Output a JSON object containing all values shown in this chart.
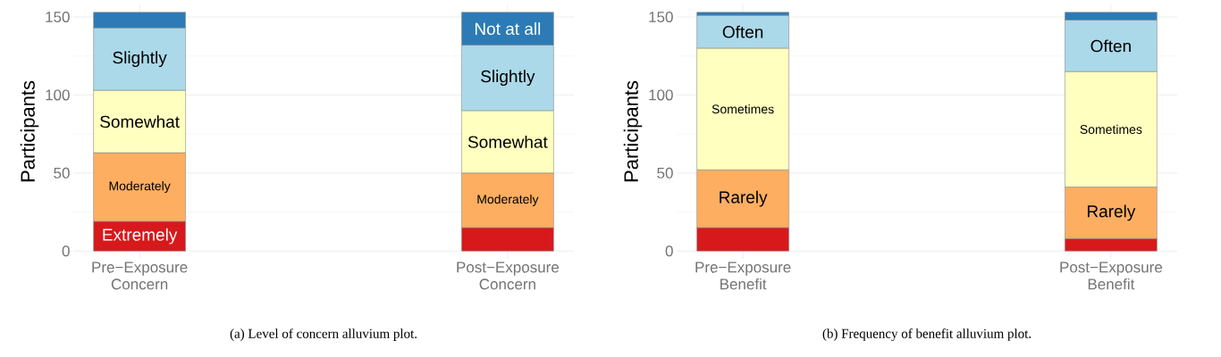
{
  "chart_data": [
    {
      "type": "bar",
      "stacked": true,
      "ylabel": "Participants",
      "categories": [
        "Pre−Exposure Concern",
        "Post−Exposure Concern"
      ],
      "series": [
        {
          "name": "Extremely",
          "color": "#d7191c",
          "values": [
            19,
            null
          ]
        },
        {
          "color": "#d7191c",
          "values": [
            null,
            15
          ]
        },
        {
          "name": "Moderately",
          "color": "#fdae61",
          "values": [
            44,
            35
          ]
        },
        {
          "name": "Somewhat",
          "color": "#ffffbf",
          "values": [
            40,
            40
          ]
        },
        {
          "name": "Slightly",
          "color": "#abd9e9",
          "values": [
            40,
            42
          ]
        },
        {
          "color": "#2c7bb6",
          "values": [
            10,
            null
          ]
        },
        {
          "name": "Not at all",
          "color": "#2c7bb6",
          "values": [
            null,
            21
          ]
        }
      ],
      "ylim": [
        -5,
        158
      ],
      "yticks": [
        0,
        50,
        100,
        150
      ],
      "grid": true,
      "legend": false,
      "annotations": [
        "(a)   Level of concern alluvium plot."
      ]
    },
    {
      "type": "bar",
      "stacked": true,
      "ylabel": "Participants",
      "categories": [
        "Pre−Exposure Benefit",
        "Post−Exposure Benefit"
      ],
      "series": [
        {
          "color": "#d7191c",
          "values": [
            15,
            8
          ]
        },
        {
          "name": "Rarely",
          "color": "#fdae61",
          "values": [
            37,
            33
          ]
        },
        {
          "name": "Sometimes",
          "color": "#ffffbf",
          "values": [
            78,
            74
          ]
        },
        {
          "name": "Often",
          "color": "#abd9e9",
          "values": [
            21,
            33
          ]
        },
        {
          "color": "#2c7bb6",
          "values": [
            2,
            5
          ]
        }
      ],
      "ylim": [
        -5,
        158
      ],
      "yticks": [
        0,
        50,
        100,
        150
      ],
      "grid": true,
      "legend": false,
      "annotations": [
        "(b)   Frequency of benefit alluvium plot."
      ]
    }
  ]
}
